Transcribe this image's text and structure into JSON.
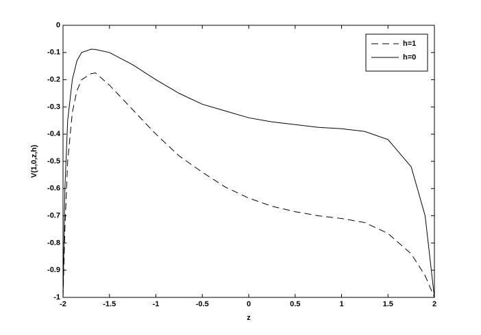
{
  "chart_data": {
    "type": "line",
    "x_label": "z",
    "y_label": "V(1,0,z,h)",
    "x": [
      -2,
      -1.98,
      -1.95,
      -1.9,
      -1.85,
      -1.8,
      -1.7,
      -1.65,
      -1.5,
      -1.25,
      -1,
      -0.75,
      -0.5,
      -0.25,
      0,
      0.25,
      0.5,
      0.75,
      1,
      1.25,
      1.5,
      1.75,
      1.9,
      2
    ],
    "series": [
      {
        "name": "h=1",
        "color": "#000000",
        "dash": "dashed",
        "values": [
          -1,
          -0.75,
          -0.5,
          -0.32,
          -0.24,
          -0.2,
          -0.178,
          -0.175,
          -0.22,
          -0.31,
          -0.4,
          -0.48,
          -0.54,
          -0.595,
          -0.635,
          -0.665,
          -0.685,
          -0.7,
          -0.71,
          -0.725,
          -0.765,
          -0.84,
          -0.92,
          -1
        ]
      },
      {
        "name": "h=0",
        "color": "#000000",
        "dash": "solid",
        "values": [
          -1,
          -0.6,
          -0.35,
          -0.2,
          -0.13,
          -0.1,
          -0.088,
          -0.089,
          -0.1,
          -0.145,
          -0.2,
          -0.25,
          -0.29,
          -0.315,
          -0.34,
          -0.355,
          -0.365,
          -0.375,
          -0.38,
          -0.39,
          -0.42,
          -0.52,
          -0.7,
          -1
        ]
      }
    ],
    "xlim": [
      -2,
      2
    ],
    "xticks": [
      -2,
      -1.5,
      -1,
      -0.5,
      0,
      0.5,
      1,
      1.5,
      2
    ],
    "ylim": [
      -1,
      0
    ],
    "yticks": [
      -1,
      -0.9,
      -0.8,
      -0.7,
      -0.6,
      -0.5,
      -0.4,
      -0.3,
      -0.2,
      -0.1,
      0
    ],
    "legend": "northeast",
    "grid": false
  }
}
